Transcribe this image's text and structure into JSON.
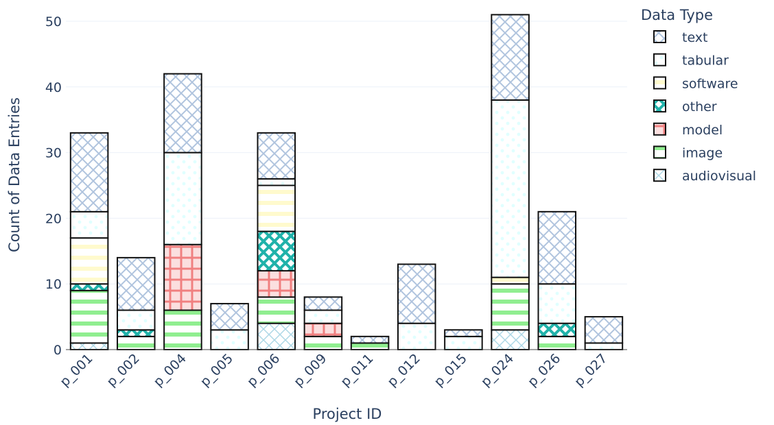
{
  "chart_data": {
    "type": "bar",
    "stacked": true,
    "title": "",
    "xlabel": "Project ID",
    "ylabel": "Count of Data Entries",
    "ylim": [
      0,
      52
    ],
    "yticks": [
      "0",
      "10",
      "20",
      "30",
      "40",
      "50"
    ],
    "grid": true,
    "legend_title": "Data Type",
    "legend_position": "right",
    "categories": [
      "p_001",
      "p_002",
      "p_004",
      "p_005",
      "p_006",
      "p_009",
      "p_011",
      "p_012",
      "p_015",
      "p_024",
      "p_026",
      "p_027"
    ],
    "series": [
      {
        "name": "audiovisual",
        "color": "#add8e6",
        "pattern": "diagonal-cross-thin",
        "values": [
          1,
          0,
          0,
          0,
          4,
          0,
          0,
          0,
          0,
          3,
          0,
          0
        ]
      },
      {
        "name": "image",
        "color": "#90ee90",
        "pattern": "horizontal-lines",
        "values": [
          8,
          2,
          6,
          0,
          4,
          2,
          1,
          0,
          0,
          7,
          2,
          0
        ]
      },
      {
        "name": "model",
        "color": "#f08080",
        "pattern": "grid",
        "values": [
          0,
          0,
          10,
          0,
          4,
          2,
          0,
          0,
          0,
          0,
          0,
          0
        ]
      },
      {
        "name": "other",
        "color": "#20b2aa",
        "pattern": "cross-hatch",
        "values": [
          1,
          1,
          0,
          0,
          6,
          0,
          0,
          0,
          0,
          0,
          2,
          0
        ]
      },
      {
        "name": "software",
        "color": "#fffacd",
        "pattern": "horizontal-lines",
        "values": [
          7,
          0,
          0,
          0,
          7,
          0,
          0,
          0,
          0,
          1,
          0,
          0
        ]
      },
      {
        "name": "tabular",
        "color": "#e0ffff",
        "pattern": "dots",
        "values": [
          4,
          3,
          14,
          3,
          1,
          2,
          0,
          4,
          2,
          27,
          6,
          1
        ]
      },
      {
        "name": "text",
        "color": "#b0c4de",
        "pattern": "diagonal-cross",
        "values": [
          12,
          8,
          12,
          4,
          7,
          2,
          1,
          9,
          1,
          13,
          11,
          4
        ]
      }
    ]
  }
}
